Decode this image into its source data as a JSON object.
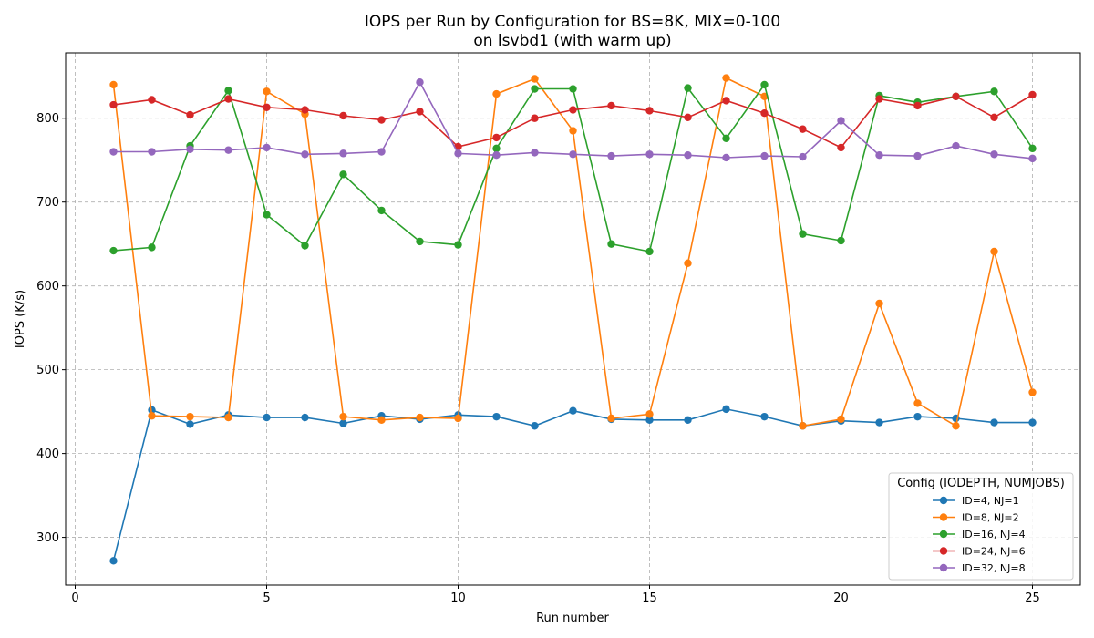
{
  "chart_data": {
    "type": "line",
    "title_line1": "IOPS per Run by Configuration for BS=8K, MIX=0-100",
    "title_line2": "on lsvbd1 (with warm up)",
    "xlabel": "Run number",
    "ylabel": "IOPS (K/s)",
    "xlim": [
      -0.25,
      26.25
    ],
    "ylim": [
      243,
      878
    ],
    "xticks": [
      0,
      5,
      10,
      15,
      20,
      25
    ],
    "yticks": [
      300,
      400,
      500,
      600,
      700,
      800
    ],
    "grid": true,
    "legend_title": "Config (IODEPTH, NUMJOBS)",
    "legend_position": "lower-right",
    "x": [
      1,
      2,
      3,
      4,
      5,
      6,
      7,
      8,
      9,
      10,
      11,
      12,
      13,
      14,
      15,
      16,
      17,
      18,
      19,
      20,
      21,
      22,
      23,
      24,
      25
    ],
    "series": [
      {
        "name": "ID=4, NJ=1",
        "color": "#1f77b4",
        "values": [
          272,
          452,
          435,
          446,
          443,
          443,
          436,
          445,
          441,
          446,
          444,
          433,
          451,
          441,
          440,
          440,
          453,
          444,
          433,
          439,
          437,
          444,
          442,
          437,
          437
        ]
      },
      {
        "name": "ID=8, NJ=2",
        "color": "#ff7f0e",
        "values": [
          840,
          445,
          444,
          443,
          832,
          805,
          444,
          440,
          443,
          442,
          829,
          847,
          785,
          442,
          447,
          627,
          848,
          826,
          433,
          441,
          579,
          460,
          433,
          641,
          473
        ]
      },
      {
        "name": "ID=16, NJ=4",
        "color": "#2ca02c",
        "values": [
          642,
          646,
          767,
          833,
          685,
          648,
          733,
          690,
          653,
          649,
          764,
          835,
          835,
          650,
          641,
          836,
          776,
          840,
          662,
          654,
          827,
          819,
          826,
          832,
          764
        ]
      },
      {
        "name": "ID=24, NJ=6",
        "color": "#d62728",
        "values": [
          816,
          822,
          804,
          823,
          813,
          810,
          803,
          798,
          808,
          766,
          777,
          800,
          810,
          815,
          809,
          801,
          821,
          806,
          787,
          765,
          823,
          815,
          826,
          801,
          828
        ]
      },
      {
        "name": "ID=32, NJ=8",
        "color": "#9467bd",
        "values": [
          760,
          760,
          763,
          762,
          765,
          757,
          758,
          760,
          843,
          758,
          756,
          759,
          757,
          755,
          757,
          756,
          753,
          755,
          754,
          797,
          756,
          755,
          767,
          757,
          752
        ]
      }
    ]
  }
}
